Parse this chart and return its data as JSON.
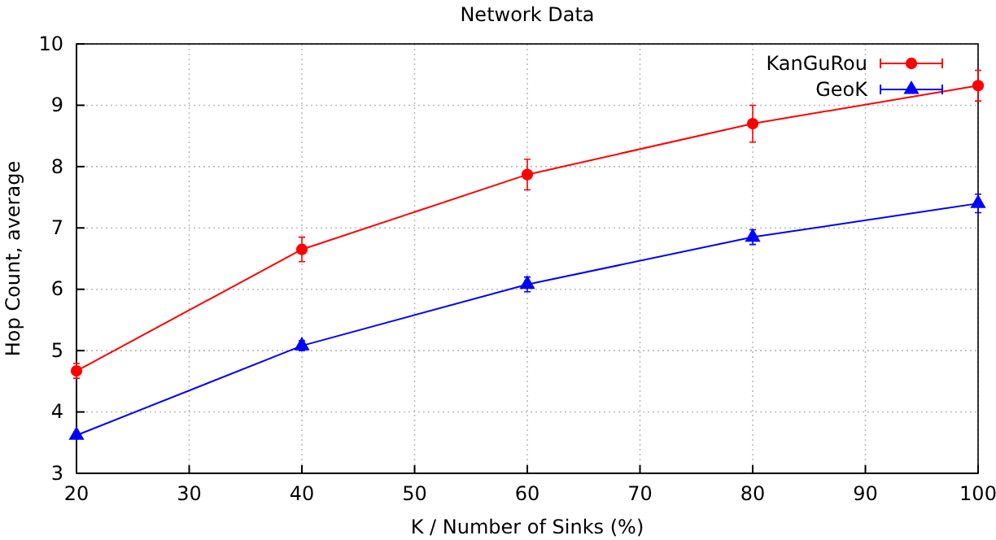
{
  "chart_data": {
    "type": "line",
    "title": "Network Data",
    "xlabel": "K / Number of Sinks (%)",
    "ylabel": "Hop Count, average",
    "x": [
      20,
      40,
      60,
      80,
      100
    ],
    "series": [
      {
        "name": "KanGuRou",
        "color": "#ff0000",
        "marker": "circle",
        "values": [
          4.67,
          6.65,
          7.87,
          8.7,
          9.32
        ],
        "errors": [
          0.12,
          0.2,
          0.25,
          0.3,
          0.25
        ]
      },
      {
        "name": "GeoK",
        "color": "#0000ff",
        "marker": "triangle",
        "values": [
          3.62,
          5.08,
          6.08,
          6.85,
          7.4
        ],
        "errors": [
          0.05,
          0.08,
          0.12,
          0.12,
          0.15
        ]
      }
    ],
    "xlim": [
      20,
      100
    ],
    "xticks": [
      20,
      30,
      40,
      50,
      60,
      70,
      80,
      90,
      100
    ],
    "ylim": [
      3,
      10
    ],
    "yticks": [
      3,
      4,
      5,
      6,
      7,
      8,
      9,
      10
    ],
    "grid": true,
    "legend": "top right",
    "line_style": "solid"
  }
}
